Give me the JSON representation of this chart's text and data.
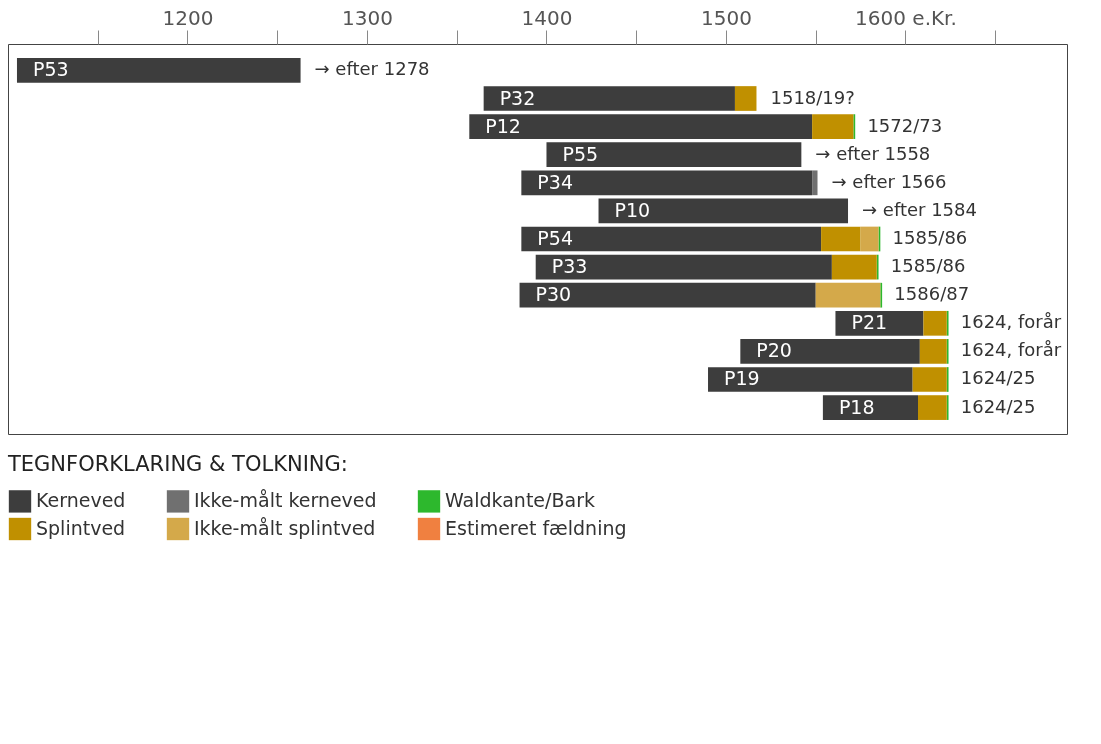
{
  "chart_data": {
    "type": "bar",
    "orientation": "horizontal",
    "tick_labels": "x",
    "legend": "bottom",
    "legend_title": "TEGNFORKLARING & TOLKNING:",
    "categories": [
      "P53",
      "P32",
      "P12",
      "P55",
      "P34",
      "P10",
      "P54",
      "P33",
      "P30",
      "P21",
      "P20",
      "P19",
      "P18"
    ],
    "xlim": [
      1100,
      1690
    ],
    "xticks": [
      {
        "value": 1150,
        "label": null
      },
      1200,
      {
        "value": 1250,
        "label": null
      },
      1300,
      {
        "value": 1350,
        "label": null
      },
      1400,
      {
        "value": 1450,
        "label": null
      },
      1500,
      {
        "value": 1550,
        "label": null
      },
      {
        "value": 1600,
        "label": "1600 e.Kr."
      },
      {
        "value": 1650,
        "label": null
      }
    ],
    "series": [
      {
        "name": "Kerneved",
        "color": "#3d3d3d",
        "base": [
          1105,
          1365,
          1357,
          1400,
          1386,
          1429,
          1386,
          1394,
          1385,
          1561,
          1508,
          1490,
          1554
        ],
        "values": [
          158,
          140,
          191,
          142,
          162,
          139,
          167,
          165,
          165,
          49,
          100,
          114,
          53
        ]
      },
      {
        "name": "Ikke-målt kerneved",
        "color": "#707070",
        "base": [
          null,
          null,
          null,
          null,
          1548,
          null,
          null,
          null,
          null,
          null,
          null,
          null,
          null
        ],
        "values": [
          null,
          null,
          null,
          null,
          3,
          null,
          null,
          null,
          null,
          null,
          null,
          null,
          null
        ]
      },
      {
        "name": "Waldkante/Bark",
        "color": "#2db82d",
        "base": [
          null,
          null,
          1571,
          null,
          null,
          null,
          1585,
          1584,
          1586,
          1623,
          1623,
          1623,
          1623
        ],
        "values": [
          null,
          null,
          1,
          null,
          null,
          null,
          1,
          1,
          1,
          1,
          1,
          1,
          1
        ]
      },
      {
        "name": "Splintved",
        "color": "#c09000",
        "base": [
          null,
          1505,
          1548,
          null,
          null,
          null,
          1553,
          1559,
          null,
          1610,
          1608,
          1604,
          1607
        ],
        "values": [
          null,
          12,
          23,
          null,
          null,
          null,
          22,
          25,
          null,
          13,
          15,
          19,
          16
        ]
      },
      {
        "name": "Ikke-målt splintved",
        "color": "#d4a94a",
        "base": [
          null,
          null,
          null,
          null,
          null,
          null,
          1575,
          null,
          1550,
          null,
          null,
          null,
          null
        ],
        "values": [
          null,
          null,
          null,
          null,
          null,
          null,
          10,
          null,
          36,
          null,
          null,
          null,
          null
        ]
      },
      {
        "name": "Estimeret fældning",
        "color": "#f08040",
        "values": [
          null,
          null,
          null,
          null,
          null,
          null,
          null,
          null,
          null,
          null,
          null,
          null,
          null
        ]
      }
    ],
    "annotations": [
      {
        "text": "→ efter 1278",
        "x": 1263,
        "y": "P53"
      },
      {
        "text": "1518/19?",
        "x": 1517,
        "y": "P32"
      },
      {
        "text": "1572/73",
        "x": 1571,
        "y": "P12"
      },
      {
        "text": "→ efter 1558",
        "x": 1542,
        "y": "P55"
      },
      {
        "text": "→ efter 1566",
        "x": 1551,
        "y": "P34"
      },
      {
        "text": "→ efter 1584",
        "x": 1568,
        "y": "P10"
      },
      {
        "text": "1585/86",
        "x": 1585,
        "y": "P54"
      },
      {
        "text": "1585/86",
        "x": 1584,
        "y": "P33"
      },
      {
        "text": "1586/87",
        "x": 1586,
        "y": "P30"
      },
      {
        "text": "1624, forår",
        "x": 1623,
        "y": "P21"
      },
      {
        "text": "1624, forår",
        "x": 1623,
        "y": "P20"
      },
      {
        "text": "1624/25",
        "x": 1623,
        "y": "P19"
      },
      {
        "text": "1624/25",
        "x": 1623,
        "y": "P18"
      }
    ]
  }
}
